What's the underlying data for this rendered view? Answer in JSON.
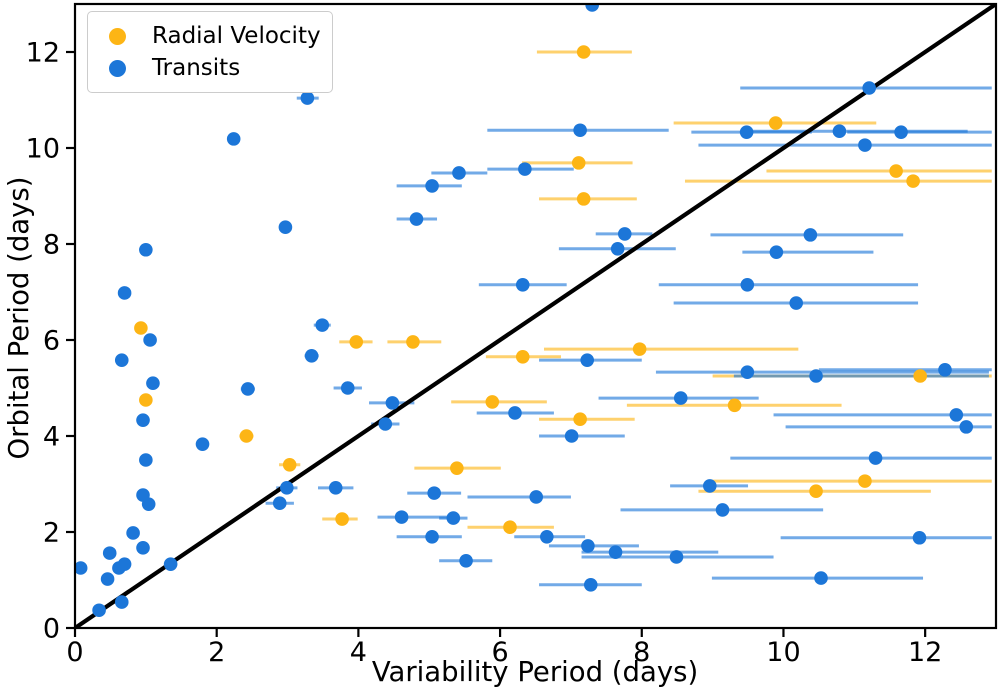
{
  "legend": {
    "items": [
      {
        "label": "Radial Velocity",
        "color": "#FDB515"
      },
      {
        "label": "Transits",
        "color": "#1C76D8"
      }
    ]
  },
  "figure": {
    "background": "#ffffff",
    "text_color": "#000000",
    "identity_line_color": "#000000",
    "legend_border_color": "#cccccc"
  },
  "chart_data": {
    "type": "scatter",
    "title": "",
    "xlabel": "Variability Period (days)",
    "ylabel": "Orbital Period (days)",
    "xlim": [
      0,
      13
    ],
    "ylim": [
      0,
      13
    ],
    "xticks": [
      0,
      2,
      4,
      6,
      8,
      10,
      12
    ],
    "yticks": [
      0,
      2,
      4,
      6,
      8,
      10,
      12
    ],
    "xtick_labels": [
      "0",
      "2",
      "4",
      "6",
      "8",
      "10",
      "12"
    ],
    "ytick_labels": [
      "0",
      "2",
      "4",
      "6",
      "8",
      "10",
      "12"
    ],
    "grid": false,
    "legend_position": "upper left",
    "identity_line": {
      "from": [
        0,
        0
      ],
      "to": [
        13,
        13
      ]
    },
    "point_format": "[x, y, xerr_low_abs, xerr_high_abs] — error bar absolute x extent, null = no visible bar",
    "series": [
      {
        "name": "Radial Velocity",
        "color": "#FDB515",
        "points": [
          [
            0.93,
            6.25,
            null,
            null
          ],
          [
            1.0,
            4.75,
            null,
            null
          ],
          [
            2.42,
            4.0,
            2.32,
            2.52
          ],
          [
            3.03,
            3.4,
            2.88,
            3.18
          ],
          [
            3.77,
            2.27,
            3.49,
            3.99
          ],
          [
            3.97,
            5.96,
            3.73,
            4.2
          ],
          [
            4.77,
            5.96,
            4.41,
            5.17
          ],
          [
            5.39,
            3.33,
            4.79,
            6.01
          ],
          [
            5.89,
            4.71,
            5.31,
            6.66
          ],
          [
            6.14,
            2.1,
            5.54,
            6.76
          ],
          [
            6.32,
            5.65,
            5.8,
            6.86
          ],
          [
            7.11,
            9.69,
            6.31,
            7.87
          ],
          [
            7.18,
            12.0,
            6.52,
            7.86
          ],
          [
            7.18,
            8.94,
            6.55,
            7.93
          ],
          [
            7.13,
            4.35,
            6.55,
            7.9
          ],
          [
            7.97,
            5.81,
            6.62,
            10.21
          ],
          [
            9.31,
            4.64,
            7.79,
            10.82
          ],
          [
            9.89,
            10.52,
            8.45,
            11.31
          ],
          [
            10.46,
            2.85,
            8.8,
            12.08
          ],
          [
            11.15,
            3.06,
            8.97,
            12.94
          ],
          [
            11.59,
            9.52,
            9.76,
            12.94
          ],
          [
            11.83,
            9.31,
            8.61,
            12.94
          ],
          [
            11.93,
            5.25,
            9.0,
            12.94
          ]
        ]
      },
      {
        "name": "Transits",
        "color": "#1C76D8",
        "points": [
          [
            0.08,
            1.25,
            null,
            null
          ],
          [
            0.34,
            0.37,
            null,
            null
          ],
          [
            0.46,
            1.02,
            null,
            null
          ],
          [
            0.49,
            1.56,
            null,
            null
          ],
          [
            0.62,
            1.25,
            null,
            null
          ],
          [
            0.7,
            1.33,
            null,
            null
          ],
          [
            0.66,
            0.54,
            null,
            null
          ],
          [
            0.7,
            6.98,
            null,
            null
          ],
          [
            0.66,
            5.58,
            null,
            null
          ],
          [
            0.82,
            1.98,
            null,
            null
          ],
          [
            0.96,
            1.67,
            null,
            null
          ],
          [
            0.96,
            2.77,
            null,
            null
          ],
          [
            1.04,
            2.58,
            null,
            null
          ],
          [
            0.96,
            4.33,
            null,
            null
          ],
          [
            1.0,
            7.88,
            null,
            null
          ],
          [
            1.06,
            6.0,
            null,
            null
          ],
          [
            1.1,
            5.1,
            null,
            null
          ],
          [
            1.0,
            3.5,
            null,
            null
          ],
          [
            1.35,
            1.33,
            null,
            null
          ],
          [
            1.8,
            3.83,
            null,
            null
          ],
          [
            2.24,
            10.19,
            null,
            null
          ],
          [
            2.44,
            4.98,
            2.34,
            2.54
          ],
          [
            2.89,
            2.6,
            2.69,
            3.09
          ],
          [
            2.99,
            2.92,
            2.84,
            3.14
          ],
          [
            2.97,
            8.35,
            2.89,
            3.05
          ],
          [
            3.28,
            11.04,
            3.13,
            3.44
          ],
          [
            3.34,
            5.67,
            3.24,
            3.44
          ],
          [
            3.49,
            6.31,
            3.37,
            3.61
          ],
          [
            3.68,
            2.92,
            3.43,
            3.93
          ],
          [
            3.85,
            5.0,
            3.65,
            4.05
          ],
          [
            4.38,
            4.25,
            4.18,
            4.58
          ],
          [
            4.48,
            4.69,
            4.15,
            4.79
          ],
          [
            4.61,
            2.31,
            4.27,
            5.28
          ],
          [
            4.82,
            8.52,
            4.54,
            5.11
          ],
          [
            5.04,
            9.21,
            4.54,
            5.46
          ],
          [
            5.07,
            2.81,
            4.69,
            5.45
          ],
          [
            5.04,
            1.9,
            4.54,
            5.46
          ],
          [
            5.34,
            2.29,
            5.14,
            5.54
          ],
          [
            5.42,
            9.48,
            5.03,
            5.82
          ],
          [
            5.52,
            1.4,
            5.14,
            5.89
          ],
          [
            6.21,
            4.48,
            5.67,
            6.76
          ],
          [
            6.35,
            9.56,
            5.82,
            7.04
          ],
          [
            6.32,
            7.15,
            5.7,
            6.94
          ],
          [
            6.51,
            2.73,
            5.54,
            7.0
          ],
          [
            6.66,
            1.9,
            6.2,
            7.2
          ],
          [
            7.01,
            4.0,
            6.55,
            7.76
          ],
          [
            7.13,
            10.37,
            5.82,
            8.38
          ],
          [
            7.23,
            5.58,
            6.55,
            8.0
          ],
          [
            7.24,
            1.71,
            6.69,
            7.96
          ],
          [
            7.28,
            0.9,
            6.55,
            8.0
          ],
          [
            7.3,
            12.98,
            null,
            null
          ],
          [
            7.63,
            1.58,
            7.15,
            9.08
          ],
          [
            7.66,
            7.9,
            6.83,
            8.48
          ],
          [
            7.76,
            8.21,
            7.35,
            8.15
          ],
          [
            8.49,
            1.48,
            7.15,
            9.86
          ],
          [
            8.55,
            4.79,
            7.39,
            9.65
          ],
          [
            8.96,
            2.96,
            8.4,
            9.5
          ],
          [
            9.14,
            2.46,
            7.7,
            10.56
          ],
          [
            9.48,
            10.33,
            8.7,
            10.4
          ],
          [
            9.49,
            7.15,
            8.24,
            11.9
          ],
          [
            9.49,
            5.33,
            8.2,
            12.9
          ],
          [
            9.9,
            7.83,
            9.42,
            11.27
          ],
          [
            10.18,
            6.77,
            8.45,
            11.9
          ],
          [
            10.38,
            8.19,
            8.97,
            11.69
          ],
          [
            10.46,
            5.25,
            9.3,
            12.9
          ],
          [
            10.53,
            1.04,
            8.99,
            11.97
          ],
          [
            10.79,
            10.35,
            9.5,
            12.6
          ],
          [
            11.15,
            10.06,
            8.8,
            12.94
          ],
          [
            11.21,
            11.25,
            9.39,
            12.94
          ],
          [
            11.3,
            3.54,
            9.25,
            12.94
          ],
          [
            11.66,
            10.33,
            10.9,
            12.94
          ],
          [
            11.92,
            1.88,
            9.96,
            12.94
          ],
          [
            12.28,
            5.38,
            10.5,
            12.94
          ],
          [
            12.44,
            4.44,
            9.86,
            12.94
          ],
          [
            12.58,
            4.19,
            10.03,
            12.94
          ]
        ]
      }
    ]
  }
}
